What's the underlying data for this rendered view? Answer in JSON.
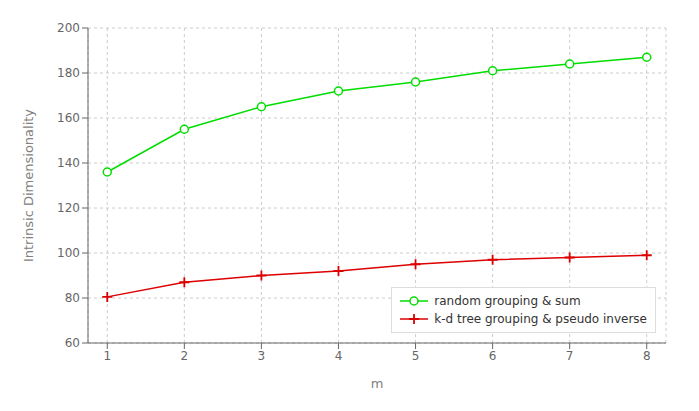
{
  "chart_data": {
    "type": "line",
    "xlabel": "m",
    "ylabel": "Intrinsic Dimensionality",
    "x": [
      1,
      2,
      3,
      4,
      5,
      6,
      7,
      8
    ],
    "series": [
      {
        "name": "random grouping & sum",
        "color": "#00dd00",
        "marker": "circle",
        "values": [
          136,
          155,
          165,
          172,
          176,
          181,
          184,
          187
        ]
      },
      {
        "name": "k-d tree grouping & pseudo inverse",
        "color": "#dd0000",
        "marker": "plus",
        "values": [
          80.5,
          87,
          90,
          92,
          95,
          97,
          98,
          99
        ]
      }
    ],
    "xlim": [
      0.75,
      8.25
    ],
    "ylim": [
      60,
      200
    ],
    "xticks": [
      1,
      2,
      3,
      4,
      5,
      6,
      7,
      8
    ],
    "yticks": [
      60,
      80,
      100,
      120,
      140,
      160,
      180,
      200
    ],
    "grid": true,
    "legend": "lower right"
  }
}
